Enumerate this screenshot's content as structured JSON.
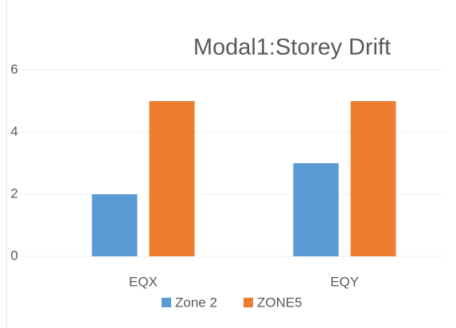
{
  "chart_data": {
    "type": "bar",
    "title": "Modal1:Storey Drift",
    "categories": [
      "EQX",
      "EQY"
    ],
    "series": [
      {
        "name": "Zone 2",
        "color": "#5b9bd5",
        "values": [
          2,
          3
        ]
      },
      {
        "name": "ZONE5",
        "color": "#ed7d31",
        "values": [
          5,
          5
        ]
      }
    ],
    "ylim": [
      0,
      8
    ],
    "yticks": [
      0,
      2,
      4,
      6
    ],
    "grid": true
  }
}
